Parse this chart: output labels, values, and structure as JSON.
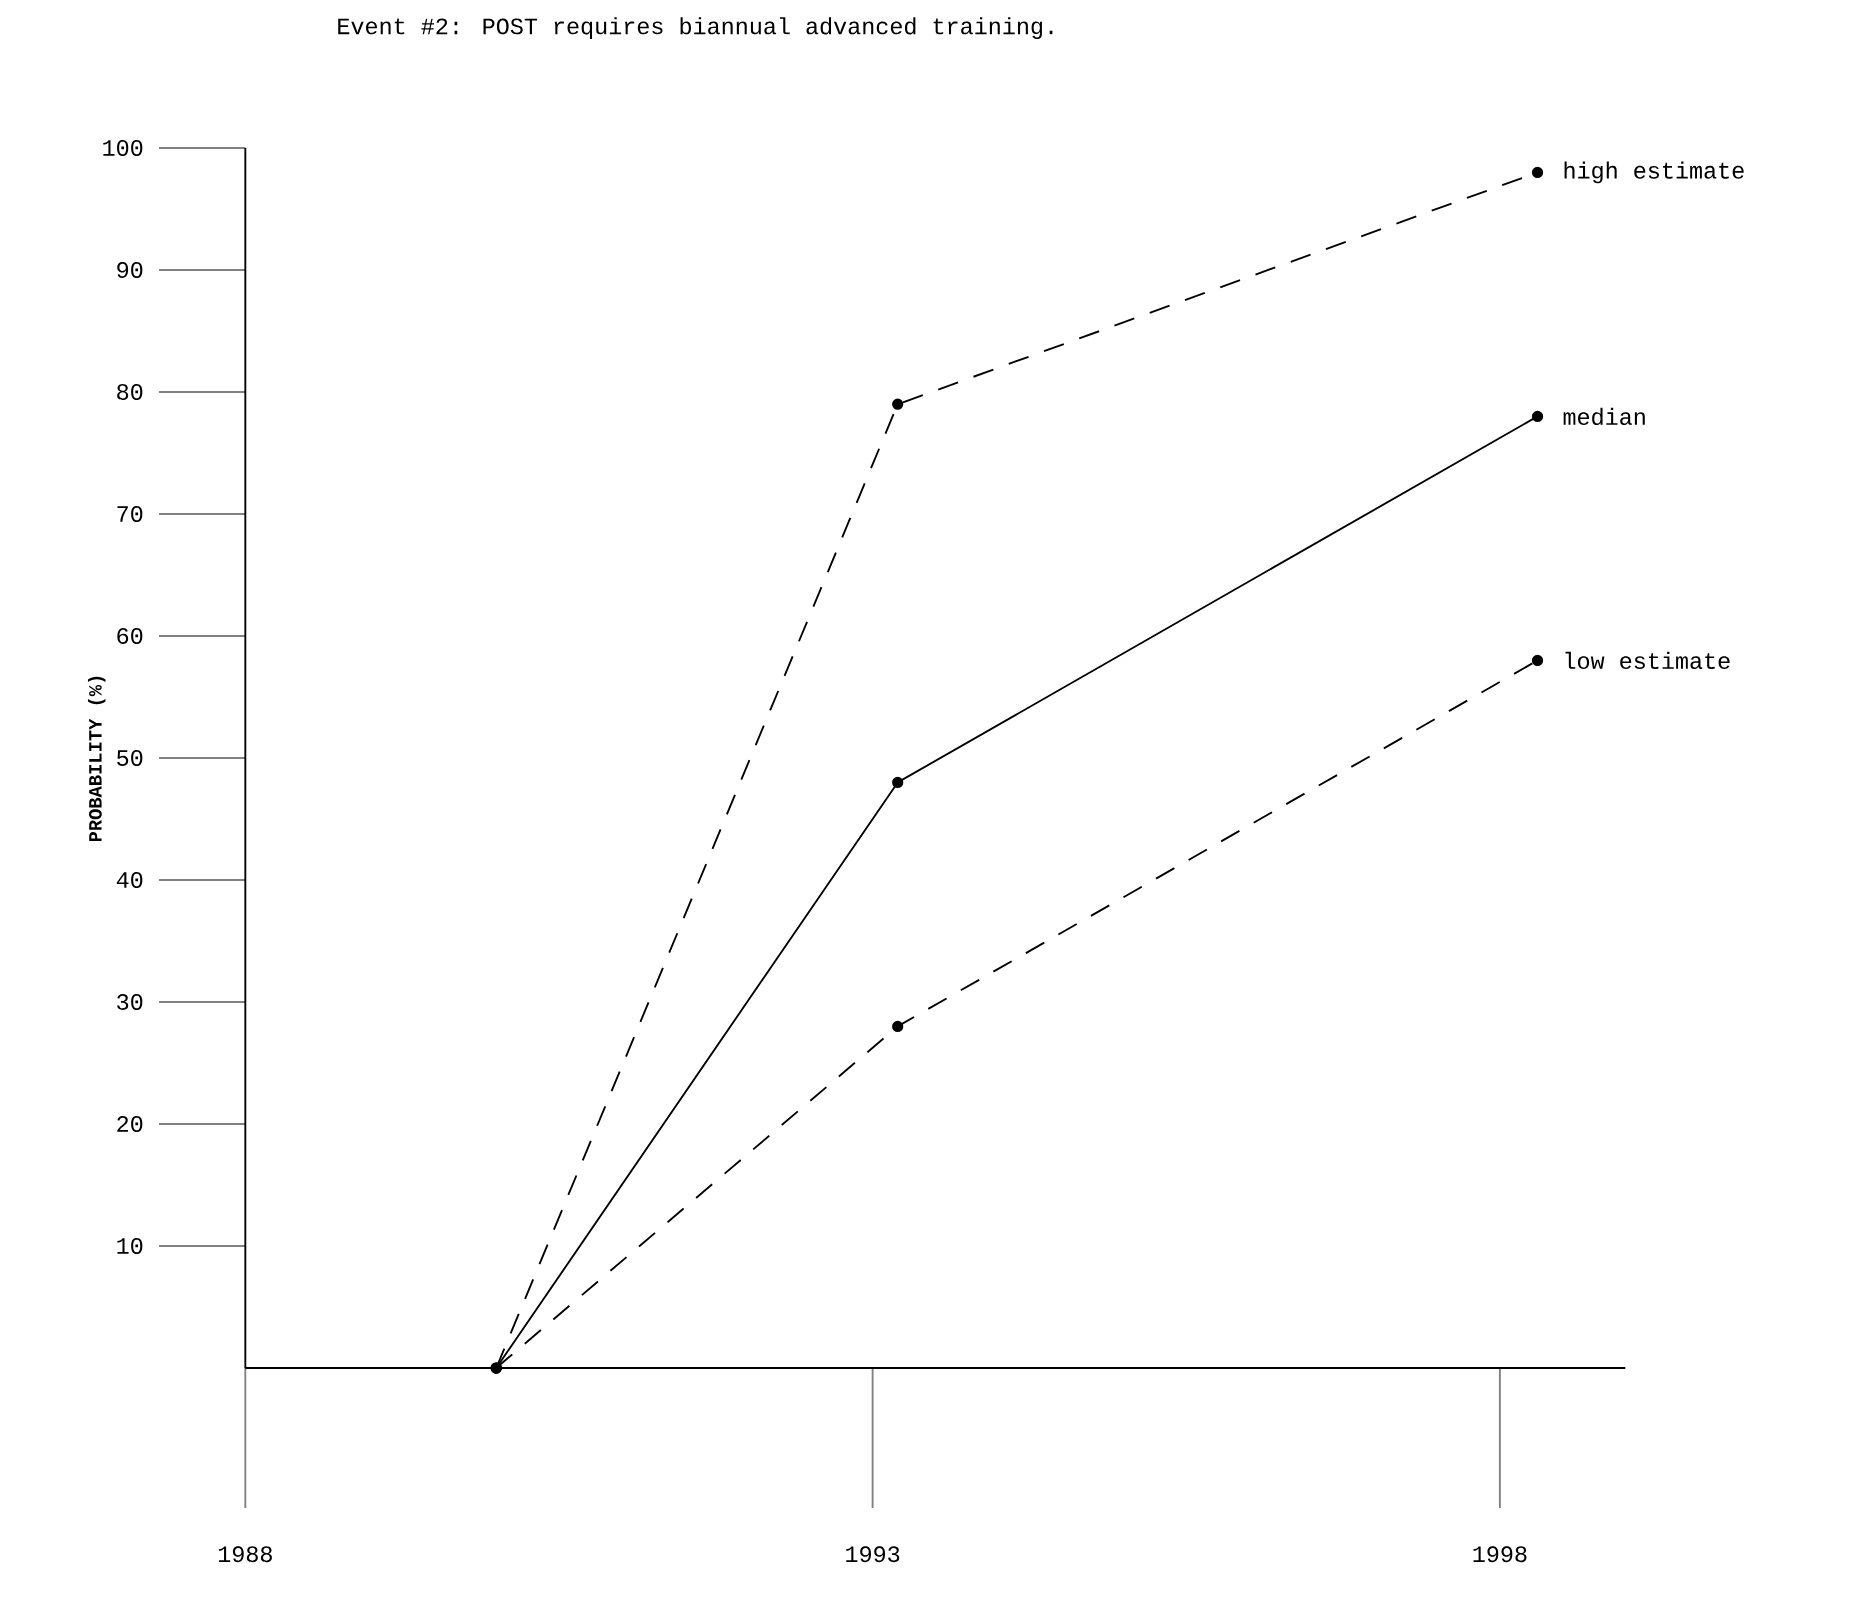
{
  "chart_data": {
    "type": "line",
    "title": "Event #2:  POST requires biannual advanced training.",
    "ylabel": "PROBABILITY (%)",
    "x": [
      1990,
      1993.2,
      1998.3
    ],
    "series": [
      {
        "name": "high estimate",
        "color": "#000000",
        "line_style": "dashed",
        "values": [
          0,
          79,
          98
        ]
      },
      {
        "name": "median",
        "color": "#000000",
        "line_style": "solid",
        "values": [
          0,
          48,
          78
        ]
      },
      {
        "name": "low estimate",
        "color": "#000000",
        "line_style": "dashed",
        "values": [
          0,
          28,
          58
        ]
      }
    ],
    "xlim": [
      1988,
      1999
    ],
    "ylim": [
      0,
      100
    ],
    "xticks": [
      1988,
      1993,
      1998
    ],
    "yticks": [
      10,
      20,
      30,
      40,
      50,
      60,
      70,
      80,
      90,
      100
    ],
    "marker": "circle",
    "grid": false,
    "legend": false
  }
}
